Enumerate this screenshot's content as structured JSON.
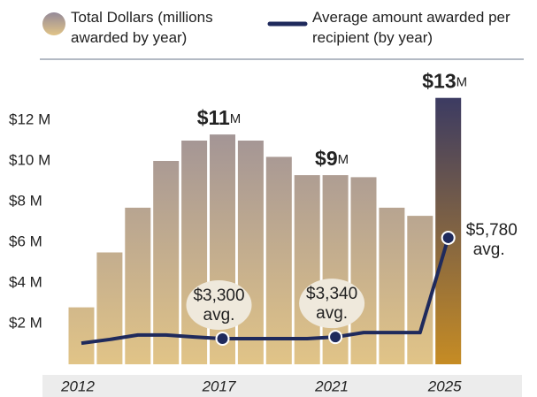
{
  "chart_data": {
    "type": "bar",
    "legend_bar": "Total Dollars (millions awarded by year)",
    "categories": [
      "2012",
      null,
      null,
      null,
      null,
      "2017",
      null,
      null,
      null,
      "2021",
      null,
      null,
      null,
      "2025"
    ],
    "values": [
      2.8,
      5.5,
      7.7,
      10.0,
      11.0,
      11.3,
      11.0,
      10.2,
      9.3,
      9.3,
      9.2,
      7.7,
      7.3,
      13.1
    ],
    "value_labels": [
      null,
      null,
      null,
      null,
      null,
      "$11M",
      null,
      null,
      null,
      "$9M",
      null,
      null,
      null,
      "$13M"
    ],
    "gradient": [
      "#958a99",
      "#e1c487"
    ],
    "highlight_category": "2025",
    "highlight_gradient": [
      "#3c3b62",
      "#c68c24"
    ],
    "ylim": [
      0,
      14
    ],
    "yticks": [
      {
        "value": 2,
        "label": "$2 M"
      },
      {
        "value": 4,
        "label": "$4 M"
      },
      {
        "value": 6,
        "label": "$6 M"
      },
      {
        "value": 8,
        "label": "$8 M"
      },
      {
        "value": 10,
        "label": "$10 M"
      },
      {
        "value": 12,
        "label": "$12 M"
      }
    ],
    "grid": false,
    "series": [
      {
        "name": "Average amount awarded per recipient (by year)",
        "type": "line",
        "axis": "y2",
        "color": "#1f2a5c",
        "values": [
          3190,
          3280,
          3390,
          3390,
          3340,
          3300,
          3300,
          3300,
          3300,
          3340,
          3450,
          3450,
          3450,
          5780
        ],
        "value_labels": [
          null,
          null,
          null,
          null,
          null,
          "$3,300",
          null,
          null,
          null,
          "$3,340",
          null,
          null,
          null,
          "$5,780"
        ],
        "value_label_note": "avg."
      }
    ],
    "y2lim": [
      2670,
      9670
    ]
  }
}
